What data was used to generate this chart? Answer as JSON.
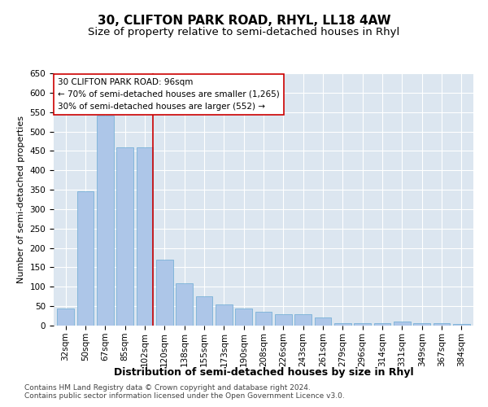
{
  "title": "30, CLIFTON PARK ROAD, RHYL, LL18 4AW",
  "subtitle": "Size of property relative to semi-detached houses in Rhyl",
  "xlabel": "Distribution of semi-detached houses by size in Rhyl",
  "ylabel": "Number of semi-detached properties",
  "categories": [
    "32sqm",
    "50sqm",
    "67sqm",
    "85sqm",
    "102sqm",
    "120sqm",
    "138sqm",
    "155sqm",
    "173sqm",
    "190sqm",
    "208sqm",
    "226sqm",
    "243sqm",
    "261sqm",
    "279sqm",
    "296sqm",
    "314sqm",
    "331sqm",
    "349sqm",
    "367sqm",
    "384sqm"
  ],
  "values": [
    45,
    345,
    540,
    460,
    460,
    170,
    110,
    75,
    55,
    45,
    35,
    30,
    30,
    20,
    7,
    7,
    7,
    10,
    7,
    7,
    5
  ],
  "bar_color": "#adc6e8",
  "bar_edge_color": "#6aaad4",
  "vline_x": 4.42,
  "vline_color": "#cc0000",
  "annotation_text": "30 CLIFTON PARK ROAD: 96sqm\n← 70% of semi-detached houses are smaller (1,265)\n30% of semi-detached houses are larger (552) →",
  "annotation_box_facecolor": "#ffffff",
  "annotation_box_edgecolor": "#cc0000",
  "ylim": [
    0,
    650
  ],
  "yticks": [
    0,
    50,
    100,
    150,
    200,
    250,
    300,
    350,
    400,
    450,
    500,
    550,
    600,
    650
  ],
  "background_color": "#dce6f0",
  "footer_line1": "Contains HM Land Registry data © Crown copyright and database right 2024.",
  "footer_line2": "Contains public sector information licensed under the Open Government Licence v3.0.",
  "title_fontsize": 11,
  "subtitle_fontsize": 9.5,
  "xlabel_fontsize": 9,
  "ylabel_fontsize": 8,
  "tick_fontsize": 7.5,
  "annotation_fontsize": 7.5,
  "footer_fontsize": 6.5
}
